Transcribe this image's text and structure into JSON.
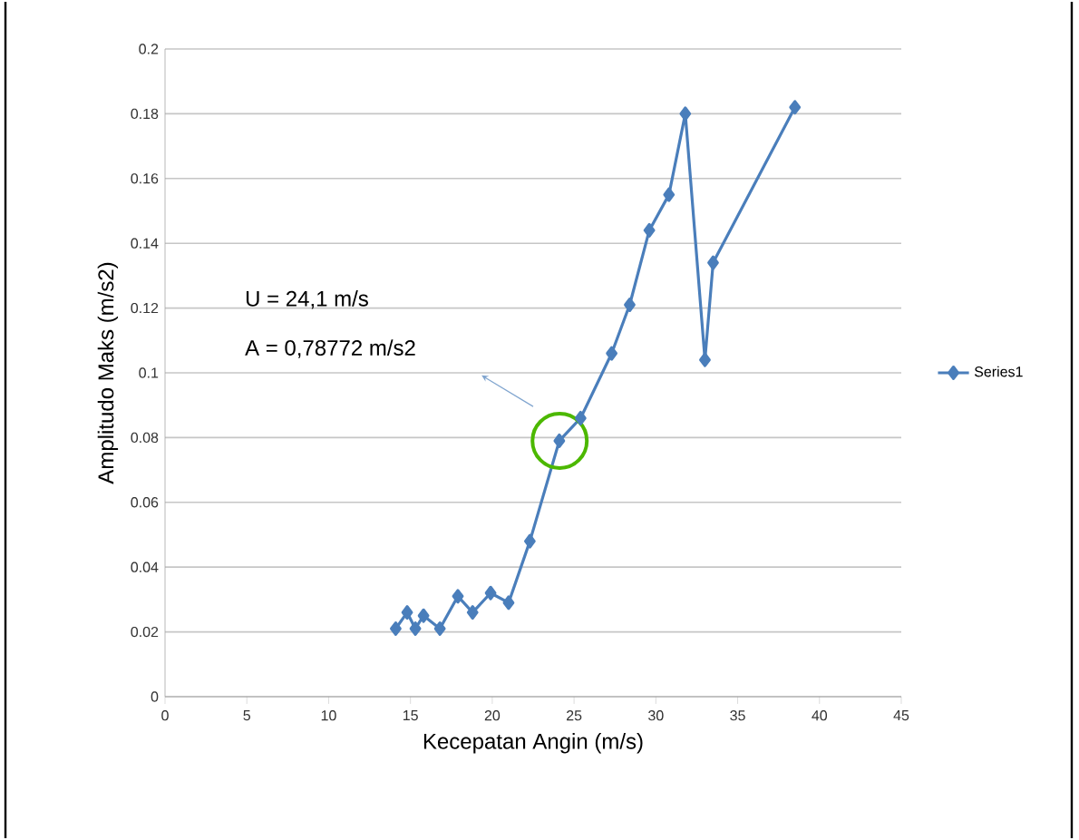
{
  "chart_data": {
    "type": "line",
    "xlabel": "Kecepatan Angin (m/s)",
    "ylabel": "Amplitudo Maks (m/s2)",
    "x": [
      14.1,
      14.8,
      15.3,
      15.8,
      16.8,
      17.9,
      18.8,
      19.9,
      21.0,
      22.3,
      24.1,
      25.4,
      27.3,
      28.4,
      29.6,
      30.8,
      31.8,
      33.0,
      33.5,
      38.5
    ],
    "series": [
      {
        "name": "Series1",
        "color": "#4a7ebb",
        "values": [
          0.021,
          0.026,
          0.021,
          0.025,
          0.021,
          0.031,
          0.026,
          0.032,
          0.029,
          0.048,
          0.079,
          0.086,
          0.106,
          0.121,
          0.144,
          0.155,
          0.18,
          0.104,
          0.134,
          0.182
        ]
      }
    ],
    "xlim": [
      0,
      45
    ],
    "ylim": [
      0,
      0.2
    ],
    "xticks": [
      0,
      5,
      10,
      15,
      20,
      25,
      30,
      35,
      40,
      45
    ],
    "yticks": [
      0,
      0.02,
      0.04,
      0.06,
      0.08,
      0.1,
      0.12,
      0.14,
      0.16,
      0.18,
      0.2
    ],
    "grid": "y",
    "legend": "right",
    "marker": "diamond",
    "line_style": "solid",
    "annotations": [
      "U = 24,1 m/s",
      "A = 0,78772 m/s2"
    ]
  }
}
